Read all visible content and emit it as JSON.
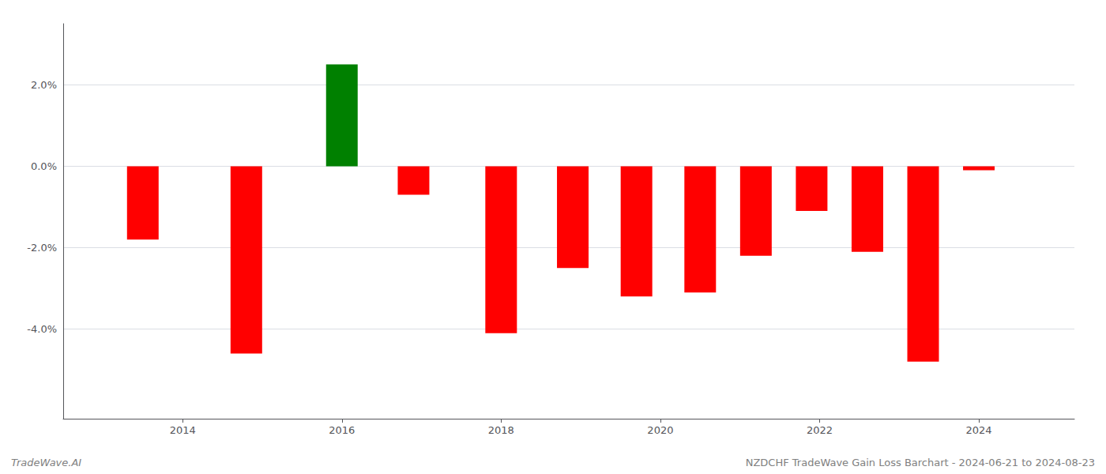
{
  "chart_data": {
    "type": "bar",
    "x": [
      2013.5,
      2014.8,
      2016.0,
      2016.9,
      2018.0,
      2018.9,
      2019.7,
      2020.5,
      2021.2,
      2021.9,
      2022.6,
      2023.3,
      2024.0
    ],
    "values": [
      -0.018,
      -0.046,
      0.025,
      -0.007,
      -0.041,
      -0.025,
      -0.032,
      -0.031,
      -0.022,
      -0.011,
      -0.021,
      -0.048,
      -0.001
    ],
    "colors": [
      "#ff0000",
      "#ff0000",
      "#008000",
      "#ff0000",
      "#ff0000",
      "#ff0000",
      "#ff0000",
      "#ff0000",
      "#ff0000",
      "#ff0000",
      "#ff0000",
      "#ff0000",
      "#ff0000"
    ],
    "xlim": [
      2012.5,
      2025.2
    ],
    "xticks": [
      2014,
      2016,
      2018,
      2020,
      2022,
      2024
    ],
    "ylim": [
      -0.062,
      0.035
    ],
    "yticks": [
      {
        "value": -0.04,
        "label": "-4.0%"
      },
      {
        "value": -0.02,
        "label": "-2.0%"
      },
      {
        "value": 0.0,
        "label": "0.0%"
      },
      {
        "value": 0.02,
        "label": "2.0%"
      }
    ],
    "grid": true,
    "annotations": [
      "TradeWave.AI",
      "NZDCHF TradeWave Gain Loss Barchart - 2024-06-21 to 2024-08-23"
    ]
  }
}
